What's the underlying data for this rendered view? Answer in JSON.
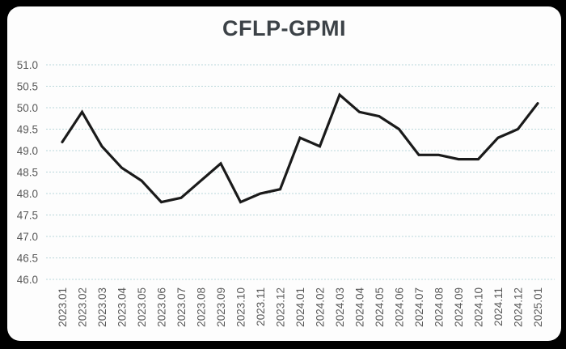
{
  "chart_data": {
    "type": "line",
    "title": "CFLP-GPMI",
    "categories": [
      "2023.01",
      "2023.02",
      "2023.03",
      "2023.04",
      "2023.05",
      "2023.06",
      "2023.07",
      "2023.08",
      "2023.09",
      "2023.10",
      "2023.11",
      "2023.12",
      "2024.01",
      "2024.02",
      "2024.03",
      "2024.04",
      "2024.05",
      "2024.06",
      "2024.07",
      "2024.08",
      "2024.09",
      "2024.10",
      "2024.11",
      "2024.12",
      "2025.01"
    ],
    "values": [
      49.2,
      49.9,
      49.1,
      48.6,
      48.3,
      47.8,
      47.9,
      48.3,
      48.7,
      47.8,
      48.0,
      48.1,
      49.3,
      49.1,
      50.3,
      49.9,
      49.8,
      49.5,
      48.9,
      48.9,
      48.8,
      48.8,
      49.3,
      49.5,
      50.1
    ],
    "ylim": [
      46.0,
      51.0
    ],
    "ytick_step": 0.5,
    "grid": "horizontal-dashed",
    "legend": "none",
    "xlabel": "",
    "ylabel": ""
  },
  "colors": {
    "frame_background": "#000000",
    "panel_background": "#fdfdfd",
    "line": "#1a1a1a",
    "grid": "#b9d6da",
    "axis_labels": "#595959",
    "title": "#3c4247"
  }
}
